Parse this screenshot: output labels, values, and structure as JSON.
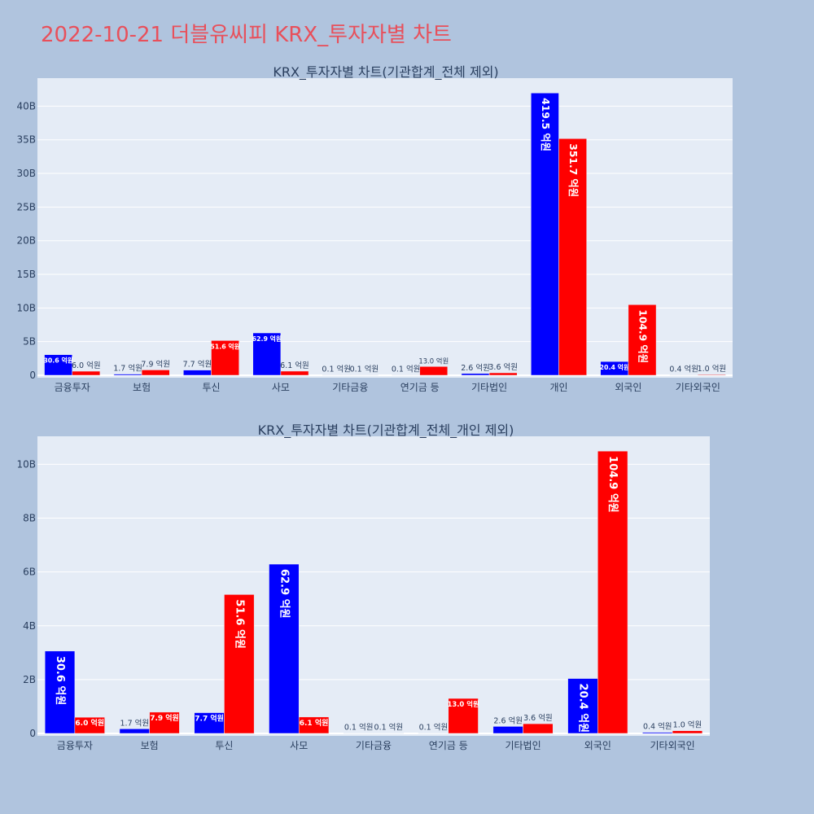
{
  "page": {
    "title": "2022-10-21 더블유씨피 KRX_투자자별 차트"
  },
  "colors": {
    "background": "#b0c4de",
    "plot_bg": "#e5ecf6",
    "buy": "#0000ff",
    "sell": "#ff0000",
    "title": "#e8505b",
    "text": "#2a3f5f"
  },
  "chart_data": [
    {
      "type": "bar",
      "title": "KRX_투자자별 차트(기관합계_전체 제외)",
      "categories": [
        "금융투자",
        "보험",
        "투신",
        "사모",
        "기타금융",
        "연기금 등",
        "기타법인",
        "개인",
        "외국인",
        "기타외국인"
      ],
      "series": [
        {
          "values": [
            3060000000,
            170000000,
            770000000,
            6290000000,
            10000000,
            10000000,
            260000000,
            41950000000,
            2040000000,
            40000000
          ]
        },
        {
          "values": [
            600000000,
            790000000,
            5160000000,
            610000000,
            10000000,
            1300000000,
            360000000,
            35170000000,
            10490000000,
            100000000
          ]
        }
      ],
      "data_labels": [
        [
          "30.6 억원",
          "1.7 억원",
          "7.7 억원",
          "62.9 억원",
          "0.1 억원",
          "0.1 억원",
          "2.6 억원",
          "419.5 억원",
          "20.4 억원",
          "0.4 억원"
        ],
        [
          "6.0 억원",
          "7.9 억원",
          "51.6 억원",
          "6.1 억원",
          "0.1 억원",
          "13.0 억원",
          "3.6 억원",
          "351.7 억원",
          "104.9 억원",
          "1.0 억원"
        ]
      ],
      "y_ticks": [
        "0",
        "5B",
        "10B",
        "15B",
        "20B",
        "25B",
        "30B",
        "35B",
        "40B"
      ],
      "y_tick_values": [
        0,
        5000000000,
        10000000000,
        15000000000,
        20000000000,
        25000000000,
        30000000000,
        35000000000,
        40000000000
      ],
      "ylim": [
        0,
        44160000000
      ],
      "xlabel": "",
      "ylabel": "",
      "grid": true,
      "legend": "none"
    },
    {
      "type": "bar",
      "title": "KRX_투자자별 차트(기관합계_전체_개인 제외)",
      "categories": [
        "금융투자",
        "보험",
        "투신",
        "사모",
        "기타금융",
        "연기금 등",
        "기타법인",
        "외국인",
        "기타외국인"
      ],
      "series": [
        {
          "values": [
            3060000000,
            170000000,
            770000000,
            6290000000,
            10000000,
            10000000,
            260000000,
            2040000000,
            40000000
          ]
        },
        {
          "values": [
            600000000,
            790000000,
            5160000000,
            610000000,
            10000000,
            1300000000,
            360000000,
            10490000000,
            100000000
          ]
        }
      ],
      "data_labels": [
        [
          "30.6 억원",
          "1.7 억원",
          "7.7 억원",
          "62.9 억원",
          "0.1 억원",
          "0.1 억원",
          "2.6 억원",
          "20.4 억원",
          "0.4 억원"
        ],
        [
          "6.0 억원",
          "7.9 억원",
          "51.6 억원",
          "6.1 억원",
          "0.1 억원",
          "13.0 억원",
          "3.6 억원",
          "104.9 억원",
          "1.0 억원"
        ]
      ],
      "y_ticks": [
        "0",
        "2B",
        "4B",
        "6B",
        "8B",
        "10B"
      ],
      "y_tick_values": [
        0,
        2000000000,
        4000000000,
        6000000000,
        8000000000,
        10000000000
      ],
      "ylim": [
        0,
        11040000000
      ],
      "xlabel": "",
      "ylabel": "",
      "grid": true,
      "legend": "none"
    }
  ]
}
